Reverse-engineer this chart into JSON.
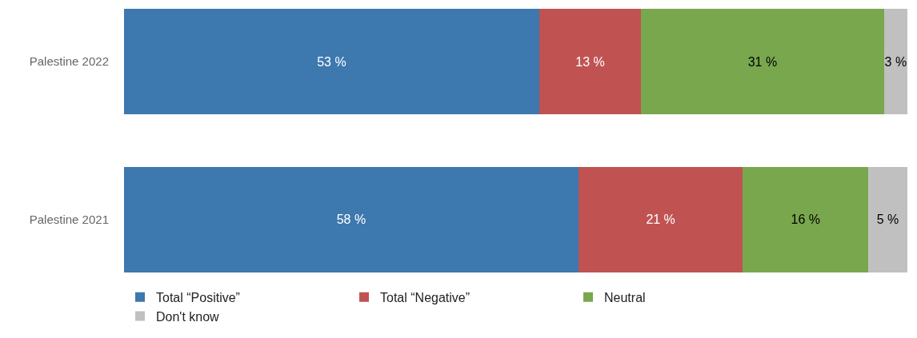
{
  "chart_data": {
    "type": "bar",
    "orientation": "horizontal",
    "stacked": true,
    "categories": [
      "Palestine 2022",
      "Palestine 2021"
    ],
    "series": [
      {
        "name": "Total “Positive”",
        "color": "#3d78ae",
        "values": [
          53,
          58
        ],
        "value_labels": [
          "53 %",
          "58 %"
        ]
      },
      {
        "name": "Total “Negative”",
        "color": "#c05352",
        "values": [
          13,
          21
        ],
        "value_labels": [
          "13 %",
          "21 %"
        ]
      },
      {
        "name": "Neutral",
        "color": "#79a74e",
        "values": [
          31,
          16
        ],
        "value_labels": [
          "31 %",
          "16 %"
        ]
      },
      {
        "name": "Don't know",
        "color": "#c0c0c0",
        "values": [
          3,
          5
        ],
        "value_labels": [
          "3 %",
          "5 %"
        ]
      }
    ],
    "xlim": [
      0,
      100
    ],
    "tick_labels": "y",
    "grid": false,
    "legend": "bottom left"
  }
}
